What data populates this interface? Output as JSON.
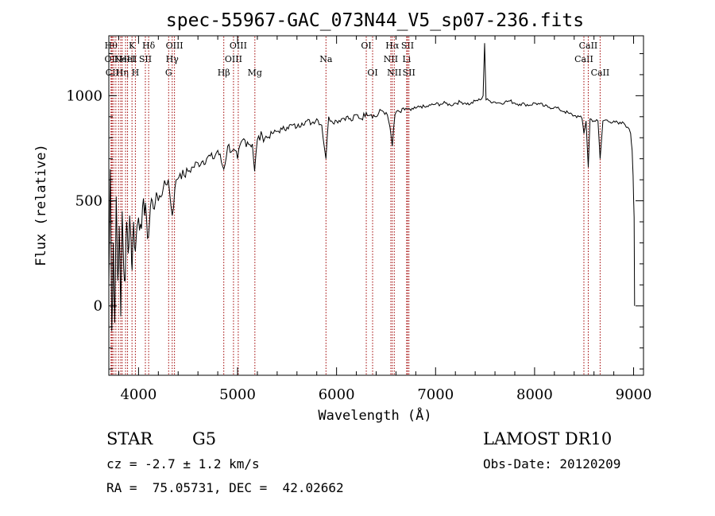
{
  "chart_data": {
    "type": "line",
    "title": "spec-55967-GAC_073N44_V5_sp07-236.fits",
    "xlabel": "Wavelength (Å)",
    "ylabel": "Flux (relative)",
    "xlim": [
      3700,
      9100
    ],
    "ylim": [
      -330,
      1285
    ],
    "xticks": [
      4000,
      5000,
      6000,
      7000,
      8000,
      9000
    ],
    "yticks": [
      0,
      500,
      1000
    ],
    "grid": false,
    "series": [
      {
        "color": "#000000",
        "x": [
          3700,
          3715,
          3730,
          3745,
          3760,
          3775,
          3790,
          3805,
          3820,
          3835,
          3850,
          3865,
          3880,
          3895,
          3910,
          3925,
          3935,
          3950,
          3968,
          3985,
          4000,
          4020,
          4040,
          4060,
          4080,
          4101,
          4120,
          4140,
          4160,
          4180,
          4200,
          4250,
          4300,
          4340,
          4380,
          4420,
          4460,
          4500,
          4550,
          4600,
          4650,
          4700,
          4750,
          4800,
          4861,
          4900,
          4950,
          5000,
          5050,
          5100,
          5150,
          5172,
          5200,
          5250,
          5300,
          5350,
          5400,
          5450,
          5500,
          5550,
          5600,
          5650,
          5700,
          5750,
          5800,
          5850,
          5893,
          5920,
          5950,
          6000,
          6050,
          6100,
          6150,
          6200,
          6250,
          6300,
          6350,
          6400,
          6450,
          6500,
          6540,
          6563,
          6590,
          6620,
          6650,
          6700,
          6750,
          6800,
          6850,
          6900,
          6950,
          7000,
          7050,
          7100,
          7150,
          7200,
          7250,
          7300,
          7350,
          7400,
          7450,
          7480,
          7495,
          7510,
          7550,
          7600,
          7650,
          7700,
          7750,
          7800,
          7850,
          7900,
          7950,
          8000,
          8050,
          8100,
          8150,
          8200,
          8250,
          8300,
          8350,
          8400,
          8450,
          8480,
          8498,
          8520,
          8542,
          8560,
          8600,
          8640,
          8662,
          8690,
          8720,
          8760,
          8800,
          8850,
          8900,
          8940,
          8970,
          8985,
          8995,
          9005,
          9010
        ],
        "y": [
          100,
          650,
          -120,
          300,
          -80,
          520,
          120,
          380,
          -50,
          450,
          180,
          120,
          400,
          250,
          430,
          310,
          170,
          400,
          260,
          380,
          420,
          390,
          470,
          430,
          420,
          330,
          470,
          500,
          460,
          540,
          500,
          560,
          600,
          430,
          600,
          630,
          620,
          640,
          660,
          680,
          690,
          710,
          700,
          740,
          650,
          760,
          740,
          700,
          790,
          780,
          770,
          640,
          790,
          810,
          800,
          820,
          830,
          840,
          850,
          860,
          850,
          870,
          880,
          870,
          890,
          860,
          700,
          900,
          880,
          880,
          890,
          900,
          880,
          910,
          890,
          920,
          910,
          900,
          930,
          920,
          850,
          760,
          910,
          930,
          920,
          940,
          930,
          940,
          950,
          945,
          955,
          960,
          960,
          965,
          955,
          965,
          970,
          965,
          960,
          975,
          980,
          1000,
          1250,
          980,
          975,
          970,
          965,
          970,
          975,
          965,
          960,
          960,
          955,
          965,
          960,
          950,
          945,
          945,
          935,
          925,
          915,
          905,
          900,
          890,
          820,
          880,
          660,
          890,
          880,
          880,
          700,
          880,
          885,
          875,
          880,
          865,
          870,
          850,
          820,
          740,
          620,
          420,
          0
        ]
      }
    ],
    "lines": [
      {
        "x": 3722,
        "label": "Hθ",
        "row": 1
      },
      {
        "x": 3727,
        "label": "OII",
        "row": 2
      },
      {
        "x": 3735,
        "label": "CII",
        "row": 3
      },
      {
        "x": 3750,
        "label": "",
        "row": 0
      },
      {
        "x": 3771,
        "label": "",
        "row": 0
      },
      {
        "x": 3798,
        "label": "",
        "row": 0
      },
      {
        "x": 3820,
        "label": "",
        "row": 0
      },
      {
        "x": 3835,
        "label": "Hη",
        "row": 3
      },
      {
        "x": 3869,
        "label": "NeIII",
        "row": 2
      },
      {
        "x": 3889,
        "label": "HeI",
        "row": 2
      },
      {
        "x": 3934,
        "label": "K",
        "row": 1
      },
      {
        "x": 3968,
        "label": "H",
        "row": 3
      },
      {
        "x": 4069,
        "label": "SII",
        "row": 2
      },
      {
        "x": 4102,
        "label": "Hδ",
        "row": 1
      },
      {
        "x": 4304,
        "label": "G",
        "row": 3
      },
      {
        "x": 4340,
        "label": "Hγ",
        "row": 2
      },
      {
        "x": 4363,
        "label": "OIII",
        "row": 1
      },
      {
        "x": 4861,
        "label": "Hβ",
        "row": 3
      },
      {
        "x": 4959,
        "label": "OIII",
        "row": 2
      },
      {
        "x": 5007,
        "label": "OIII",
        "row": 1
      },
      {
        "x": 5175,
        "label": "Mg",
        "row": 3
      },
      {
        "x": 5893,
        "label": "Na",
        "row": 2
      },
      {
        "x": 6300,
        "label": "OI",
        "row": 1
      },
      {
        "x": 6364,
        "label": "OI",
        "row": 3
      },
      {
        "x": 6548,
        "label": "NII",
        "row": 2
      },
      {
        "x": 6563,
        "label": "Hα",
        "row": 1
      },
      {
        "x": 6583,
        "label": "NII",
        "row": 3
      },
      {
        "x": 6708,
        "label": "Li",
        "row": 2
      },
      {
        "x": 6717,
        "label": "SII",
        "row": 1
      },
      {
        "x": 6731,
        "label": "SII",
        "row": 3
      },
      {
        "x": 8498,
        "label": "CaII",
        "row": 2
      },
      {
        "x": 8542,
        "label": "CaII",
        "row": 1
      },
      {
        "x": 8662,
        "label": "CaII",
        "row": 3
      }
    ],
    "annotation_color": "#a00000"
  },
  "info": {
    "object_class": "STAR",
    "subclass": "G5",
    "survey": "LAMOST DR10",
    "cz": "cz = -2.7 ± 1.2 km/s",
    "obs_date": "Obs-Date: 20120209",
    "coords": "RA =  75.05731, DEC =  42.02662"
  }
}
